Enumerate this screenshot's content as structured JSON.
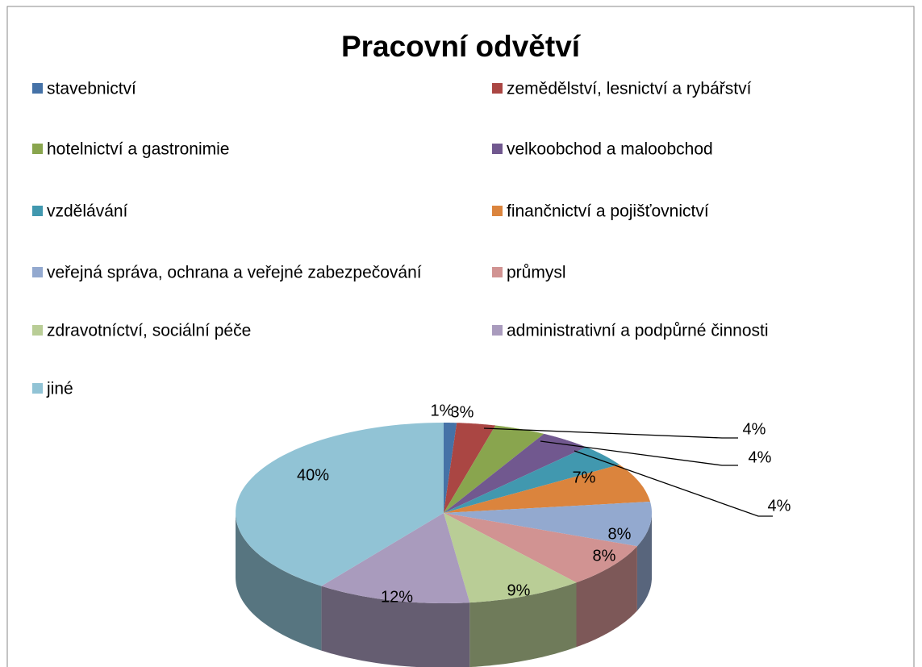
{
  "chart_data": {
    "type": "pie",
    "title": "Pracovní odvětví",
    "categories": [
      "stavebnictví",
      "zemědělství, lesnictví a rybářství",
      "hotelnictví a gastronimie",
      "velkoobchod a maloobchod",
      "vzdělávání",
      "finančnictví a pojišťovnictví",
      "veřejná správa, ochrana a veřejné zabezpečování",
      "průmysl",
      "zdravotníctví, sociální péče",
      "administrativní a podpůrné činnosti",
      "jiné"
    ],
    "values": [
      1,
      3,
      4,
      4,
      4,
      7,
      8,
      8,
      9,
      12,
      40
    ],
    "value_labels": [
      "1%",
      "3%",
      "4%",
      "4%",
      "4%",
      "7%",
      "8%",
      "8%",
      "9%",
      "12%",
      "40%"
    ],
    "colors": [
      "#4572A7",
      "#AA4643",
      "#89A54E",
      "#71588F",
      "#4198AF",
      "#DB843D",
      "#93A9CF",
      "#D19392",
      "#B9CD96",
      "#A99BBD",
      "#91C3D5"
    ],
    "legend": "top"
  }
}
